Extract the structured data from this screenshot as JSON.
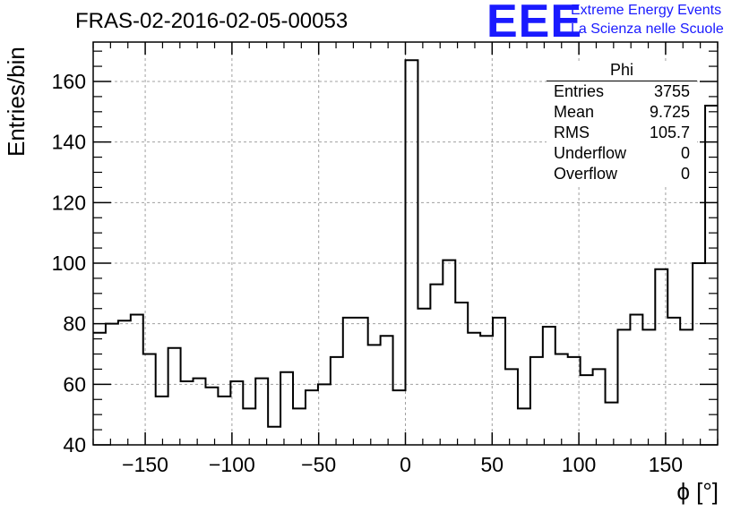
{
  "title": "FRAS-02-2016-02-05-00053",
  "logo": {
    "text": "EEE",
    "line1": "Extreme Energy Events",
    "line2": "La Scienza nelle Scuole",
    "color": "#1a1aff"
  },
  "stats": {
    "title": "Phi",
    "rows": [
      {
        "label": "Entries",
        "value": "3755"
      },
      {
        "label": "Mean",
        "value": "9.725"
      },
      {
        "label": "RMS",
        "value": "105.7"
      },
      {
        "label": "Underflow",
        "value": "0"
      },
      {
        "label": "Overflow",
        "value": "0"
      }
    ]
  },
  "chart_data": {
    "type": "bar",
    "histogram": true,
    "title": "FRAS-02-2016-02-05-00053",
    "xlabel": "ϕ [°]",
    "ylabel": "Entries/bin",
    "xlim": [
      -180,
      180
    ],
    "ylim": [
      40,
      173
    ],
    "bin_width": 7.2,
    "x_ticks": [
      "−150",
      "−100",
      "−50",
      "0",
      "50",
      "100",
      "150"
    ],
    "x_tick_values": [
      -150,
      -100,
      -50,
      0,
      50,
      100,
      150
    ],
    "y_ticks": [
      "40",
      "60",
      "80",
      "100",
      "120",
      "140",
      "160"
    ],
    "y_tick_values": [
      40,
      60,
      80,
      100,
      120,
      140,
      160
    ],
    "grid": true,
    "values": [
      77,
      80,
      81,
      83,
      70,
      56,
      72,
      61,
      62,
      59,
      56,
      61,
      52,
      62,
      46,
      64,
      52,
      58,
      60,
      69,
      82,
      82,
      73,
      76,
      58,
      167,
      85,
      93,
      101,
      87,
      77,
      76,
      82,
      65,
      52,
      69,
      79,
      70,
      69,
      63,
      65,
      54,
      78,
      83,
      78,
      98,
      82,
      78,
      100,
      152
    ]
  }
}
